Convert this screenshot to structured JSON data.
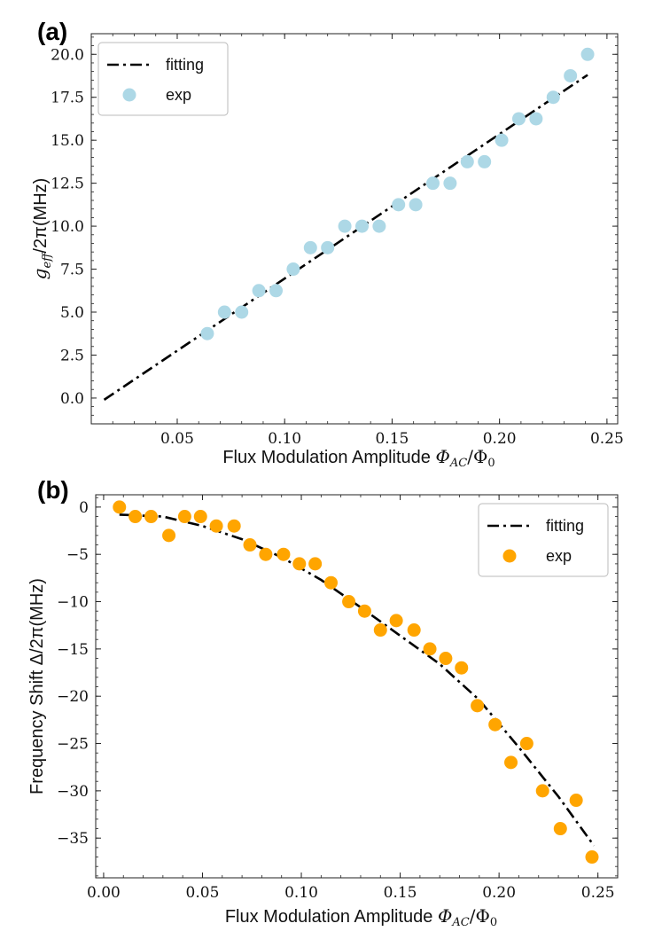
{
  "chart_data": [
    {
      "type": "scatter",
      "panel_label": "(a)",
      "xlabel": "Flux Modulation Amplitude Φ_{AC}/Φ_0",
      "xlabel_parts": {
        "main": "Flux Modulation Amplitude ",
        "phi": "Φ",
        "sub1": "AC",
        "slash": "/Φ",
        "sub2": "0"
      },
      "ylabel": "g_{eff}/2π(MHz)",
      "ylabel_parts": {
        "g": "g",
        "sub": "eff",
        "rest": "/2π(MHz)"
      },
      "xlim": [
        0.01,
        0.255
      ],
      "ylim": [
        -1.5,
        21.2
      ],
      "xticks": [
        0.05,
        0.1,
        0.15,
        0.2,
        0.25
      ],
      "xtick_labels": [
        "0.05",
        "0.10",
        "0.15",
        "0.20",
        "0.25"
      ],
      "yticks": [
        0.0,
        2.5,
        5.0,
        7.5,
        10.0,
        12.5,
        15.0,
        17.5,
        20.0
      ],
      "ytick_labels": [
        "0.0",
        "2.5",
        "5.0",
        "7.5",
        "10.0",
        "12.5",
        "15.0",
        "17.5",
        "20.0"
      ],
      "legend_position": "upper-left",
      "series": [
        {
          "name": "fitting",
          "kind": "line",
          "style": "dashdot",
          "color": "#000000",
          "x": [
            0.016,
            0.241
          ],
          "y": [
            -0.1,
            18.8
          ]
        },
        {
          "name": "exp",
          "kind": "scatter",
          "color": "#add8e6",
          "x": [
            0.064,
            0.072,
            0.08,
            0.088,
            0.096,
            0.104,
            0.112,
            0.12,
            0.128,
            0.136,
            0.144,
            0.153,
            0.161,
            0.169,
            0.177,
            0.185,
            0.193,
            0.201,
            0.209,
            0.217,
            0.225,
            0.233,
            0.241
          ],
          "y": [
            3.75,
            5.0,
            5.0,
            6.25,
            6.25,
            7.5,
            8.75,
            8.75,
            10.0,
            10.0,
            10.0,
            11.25,
            11.25,
            12.5,
            12.5,
            13.75,
            13.75,
            15.0,
            16.25,
            16.25,
            17.5,
            18.75,
            20.0
          ]
        }
      ]
    },
    {
      "type": "scatter",
      "panel_label": "(b)",
      "xlabel": "Flux Modulation Amplitude Φ_{AC}/Φ_0",
      "xlabel_parts": {
        "main": "Flux Modulation Amplitude ",
        "phi": "Φ",
        "sub1": "AC",
        "slash": "/Φ",
        "sub2": "0"
      },
      "ylabel": "Frequency Shift Δ/2π(MHz)",
      "ylabel_parts": {
        "main": "Frequency Shift Δ/2π(MHz)"
      },
      "xlim": [
        -0.004,
        0.26
      ],
      "ylim": [
        -39.2,
        1.3
      ],
      "xticks": [
        0.0,
        0.05,
        0.1,
        0.15,
        0.2,
        0.25
      ],
      "xtick_labels": [
        "0.00",
        "0.05",
        "0.10",
        "0.15",
        "0.20",
        "0.25"
      ],
      "yticks": [
        0,
        -5,
        -10,
        -15,
        -20,
        -25,
        -30,
        -35
      ],
      "ytick_labels": [
        "0",
        "−5",
        "−10",
        "−15",
        "−20",
        "−25",
        "−30",
        "−35"
      ],
      "legend_position": "upper-right",
      "series": [
        {
          "name": "fitting",
          "kind": "line",
          "style": "dashdot",
          "color": "#000000",
          "x": [
            0.008,
            0.03,
            0.05,
            0.07,
            0.09,
            0.11,
            0.13,
            0.15,
            0.17,
            0.19,
            0.21,
            0.23,
            0.248
          ],
          "y": [
            -0.8,
            -1.0,
            -2.0,
            -3.4,
            -5.3,
            -7.7,
            -10.6,
            -13.6,
            -16.6,
            -20.4,
            -25.4,
            -30.6,
            -35.8
          ]
        },
        {
          "name": "exp",
          "kind": "scatter",
          "color": "#ffa500",
          "x": [
            0.008,
            0.016,
            0.024,
            0.033,
            0.041,
            0.049,
            0.057,
            0.066,
            0.074,
            0.082,
            0.091,
            0.099,
            0.107,
            0.115,
            0.124,
            0.132,
            0.14,
            0.148,
            0.157,
            0.165,
            0.173,
            0.181,
            0.189,
            0.198,
            0.206,
            0.214,
            0.222,
            0.231,
            0.239,
            0.247
          ],
          "y": [
            0,
            -1,
            -1,
            -3,
            -1,
            -1,
            -2,
            -2,
            -4,
            -5,
            -5,
            -6,
            -6,
            -8,
            -10,
            -11,
            -13,
            -12,
            -13,
            -15,
            -16,
            -17,
            -21,
            -23,
            -27,
            -25,
            -30,
            -34,
            -31,
            -37
          ]
        }
      ]
    }
  ]
}
